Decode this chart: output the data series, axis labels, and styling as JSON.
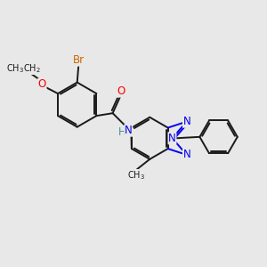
{
  "bg_color": "#e8e8e8",
  "bond_color": "#1a1a1a",
  "bond_width": 1.4,
  "atom_colors": {
    "Br": "#cc6600",
    "O": "#ff0000",
    "N": "#0000ee",
    "C": "#1a1a1a",
    "H": "#4a9090"
  },
  "fs_large": 8.5,
  "fs_small": 7.0,
  "figsize": [
    3.0,
    3.0
  ],
  "dpi": 100
}
